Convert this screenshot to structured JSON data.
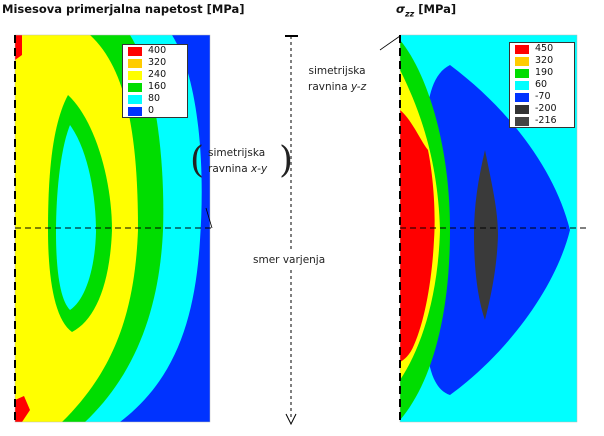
{
  "left_panel": {
    "title": "Misesova primerjalna napetost [MPa]",
    "legend": [
      {
        "label": "400",
        "color": "#ff0000"
      },
      {
        "label": "320",
        "color": "#ffcc00"
      },
      {
        "label": "240",
        "color": "#ffff00"
      },
      {
        "label": "160",
        "color": "#00dd00"
      },
      {
        "label": "80",
        "color": "#00ffff"
      },
      {
        "label": "0",
        "color": "#0033ff"
      }
    ]
  },
  "right_panel": {
    "title_symbol": "σ",
    "title_subscript": "zz",
    "title_unit": "[MPa]",
    "legend": [
      {
        "label": "450",
        "color": "#ff0000"
      },
      {
        "label": "320",
        "color": "#ffcc00"
      },
      {
        "label": "190",
        "color": "#00dd00"
      },
      {
        "label": "60",
        "color": "#00ffff"
      },
      {
        "label": "-70",
        "color": "#0033ff"
      },
      {
        "label": "-200",
        "color": "#333333"
      },
      {
        "label": "-216",
        "color": "#444444"
      }
    ]
  },
  "annotations": {
    "plane_xy_line1": "simetrijska",
    "plane_xy_line2_prefix": "ravnina ",
    "plane_xy_line2_italic": "x-y",
    "plane_yz_line1": "simetrijska",
    "plane_yz_line2_prefix": "ravnina ",
    "plane_yz_line2_italic": "y-z",
    "welding_direction": "smer varjenja"
  },
  "colors": {
    "red": "#ff0000",
    "orange": "#ffcc00",
    "yellow": "#ffff00",
    "green": "#00dd00",
    "cyan": "#00ffff",
    "blue": "#0033ff",
    "dark": "#3a3a3a"
  }
}
